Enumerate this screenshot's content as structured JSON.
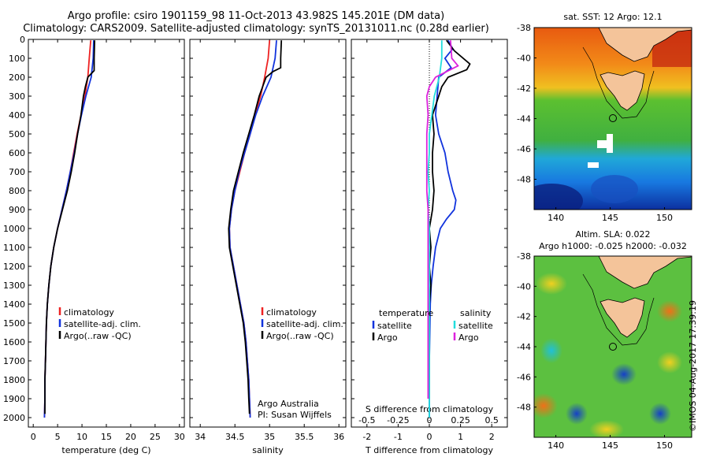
{
  "header": {
    "title_line1": "Argo profile: csiro 1901159_98 11-Oct-2013 43.982S 145.201E (DM data)",
    "title_line2": "Climatology: CARS2009. Satellite-adjusted climatology: synTS_20131011.nc (0.28d earlier)"
  },
  "credit": "©IMOS 04-Aug-2017 17:39:19",
  "colors": {
    "climatology": "#ee2222",
    "satellite": "#1133dd",
    "argo": "#000000",
    "s_satellite": "#22dddd",
    "s_argo": "#dd22dd"
  },
  "chart_data": [
    {
      "type": "line",
      "name": "temperature-profile",
      "xlabel": "temperature (deg C)",
      "ylabel": "",
      "xlim": [
        -1,
        31
      ],
      "ylim": [
        2050,
        0
      ],
      "xticks": [
        0,
        5,
        10,
        15,
        20,
        25,
        30
      ],
      "yticks": [
        0,
        100,
        200,
        300,
        400,
        500,
        600,
        700,
        800,
        900,
        1000,
        1100,
        1200,
        1300,
        1400,
        1500,
        1600,
        1700,
        1800,
        1900,
        2000
      ],
      "legend": {
        "position": "lower-right",
        "entries": [
          "climatology",
          "satellite-adj. clim.",
          "Argo(..raw -QC)"
        ]
      },
      "series": [
        {
          "name": "climatology",
          "color": "#ee2222",
          "points": [
            [
              11.8,
              5
            ],
            [
              11.5,
              100
            ],
            [
              11.2,
              200
            ],
            [
              10.6,
              300
            ],
            [
              9.8,
              400
            ],
            [
              9.0,
              500
            ],
            [
              8.3,
              600
            ],
            [
              7.6,
              700
            ],
            [
              6.8,
              800
            ],
            [
              5.9,
              900
            ],
            [
              5.0,
              1000
            ],
            [
              4.2,
              1100
            ],
            [
              3.6,
              1200
            ],
            [
              3.2,
              1300
            ],
            [
              2.9,
              1400
            ],
            [
              2.7,
              1500
            ],
            [
              2.6,
              1600
            ],
            [
              2.5,
              1700
            ],
            [
              2.4,
              1800
            ],
            [
              2.4,
              1900
            ],
            [
              2.3,
              2000
            ]
          ]
        },
        {
          "name": "satellite-adj. clim.",
          "color": "#1133dd",
          "points": [
            [
              12.4,
              5
            ],
            [
              12.3,
              100
            ],
            [
              11.9,
              200
            ],
            [
              10.8,
              300
            ],
            [
              9.9,
              400
            ],
            [
              9.1,
              500
            ],
            [
              8.4,
              600
            ],
            [
              7.6,
              700
            ],
            [
              6.8,
              800
            ],
            [
              5.9,
              900
            ],
            [
              5.0,
              1000
            ],
            [
              4.2,
              1100
            ],
            [
              3.6,
              1200
            ],
            [
              3.2,
              1300
            ],
            [
              2.9,
              1400
            ],
            [
              2.7,
              1500
            ],
            [
              2.6,
              1600
            ],
            [
              2.5,
              1700
            ],
            [
              2.4,
              1800
            ],
            [
              2.4,
              1900
            ],
            [
              2.3,
              2000
            ]
          ]
        },
        {
          "name": "Argo(..raw -QC)",
          "color": "#000000",
          "points": [
            [
              12.6,
              5
            ],
            [
              12.5,
              100
            ],
            [
              12.5,
              165
            ],
            [
              11.2,
              200
            ],
            [
              10.7,
              250
            ],
            [
              10.3,
              300
            ],
            [
              9.8,
              400
            ],
            [
              9.1,
              500
            ],
            [
              8.5,
              600
            ],
            [
              7.8,
              700
            ],
            [
              7.0,
              800
            ],
            [
              6.0,
              900
            ],
            [
              5.0,
              1000
            ],
            [
              4.2,
              1100
            ],
            [
              3.6,
              1200
            ],
            [
              3.2,
              1300
            ],
            [
              2.9,
              1400
            ],
            [
              2.7,
              1500
            ],
            [
              2.6,
              1600
            ],
            [
              2.5,
              1700
            ],
            [
              2.4,
              1800
            ],
            [
              2.4,
              1900
            ],
            [
              2.4,
              1980
            ]
          ]
        }
      ]
    },
    {
      "type": "line",
      "name": "salinity-profile",
      "xlabel": "salinity",
      "ylabel": "",
      "xlim": [
        33.85,
        36.1
      ],
      "ylim": [
        2050,
        0
      ],
      "xticks": [
        34,
        34.5,
        35,
        35.5,
        36
      ],
      "legend": {
        "position": "lower-right",
        "entries": [
          "climatology",
          "satellite-adj. clim.",
          "Argo(..raw -QC)"
        ]
      },
      "annotations": [
        "Argo Australia",
        "PI: Susan Wijffels"
      ],
      "series": [
        {
          "name": "climatology",
          "color": "#ee2222",
          "points": [
            [
              35.0,
              5
            ],
            [
              34.98,
              100
            ],
            [
              34.93,
              200
            ],
            [
              34.87,
              300
            ],
            [
              34.79,
              400
            ],
            [
              34.72,
              500
            ],
            [
              34.64,
              600
            ],
            [
              34.57,
              700
            ],
            [
              34.5,
              800
            ],
            [
              34.45,
              900
            ],
            [
              34.42,
              1000
            ],
            [
              34.43,
              1100
            ],
            [
              34.48,
              1200
            ],
            [
              34.53,
              1300
            ],
            [
              34.58,
              1400
            ],
            [
              34.63,
              1500
            ],
            [
              34.66,
              1600
            ],
            [
              34.68,
              1700
            ],
            [
              34.7,
              1800
            ],
            [
              34.71,
              1900
            ],
            [
              34.72,
              2000
            ]
          ]
        },
        {
          "name": "satellite-adj. clim.",
          "color": "#1133dd",
          "points": [
            [
              35.1,
              5
            ],
            [
              35.08,
              100
            ],
            [
              35.02,
              200
            ],
            [
              34.9,
              300
            ],
            [
              34.8,
              400
            ],
            [
              34.72,
              500
            ],
            [
              34.64,
              600
            ],
            [
              34.56,
              700
            ],
            [
              34.5,
              800
            ],
            [
              34.45,
              900
            ],
            [
              34.42,
              1000
            ],
            [
              34.43,
              1100
            ],
            [
              34.48,
              1200
            ],
            [
              34.53,
              1300
            ],
            [
              34.58,
              1400
            ],
            [
              34.63,
              1500
            ],
            [
              34.66,
              1600
            ],
            [
              34.68,
              1700
            ],
            [
              34.7,
              1800
            ],
            [
              34.71,
              1900
            ],
            [
              34.72,
              2000
            ]
          ]
        },
        {
          "name": "Argo(..raw -QC)",
          "color": "#000000",
          "points": [
            [
              35.17,
              5
            ],
            [
              35.16,
              100
            ],
            [
              35.16,
              150
            ],
            [
              35.05,
              170
            ],
            [
              34.95,
              200
            ],
            [
              34.85,
              300
            ],
            [
              34.78,
              400
            ],
            [
              34.7,
              500
            ],
            [
              34.62,
              600
            ],
            [
              34.55,
              700
            ],
            [
              34.48,
              800
            ],
            [
              34.44,
              900
            ],
            [
              34.41,
              1000
            ],
            [
              34.42,
              1100
            ],
            [
              34.47,
              1200
            ],
            [
              34.52,
              1300
            ],
            [
              34.57,
              1400
            ],
            [
              34.62,
              1500
            ],
            [
              34.65,
              1600
            ],
            [
              34.67,
              1700
            ],
            [
              34.69,
              1800
            ],
            [
              34.7,
              1900
            ],
            [
              34.71,
              1980
            ]
          ]
        }
      ]
    },
    {
      "type": "line",
      "name": "difference-profile",
      "xlabel": "T difference from climatology",
      "x2label": "S difference from climatology",
      "xlim": [
        -2.5,
        2.5
      ],
      "x2lim": [
        -0.625,
        0.625
      ],
      "ylim": [
        2050,
        0
      ],
      "xticks": [
        -2,
        -1,
        0,
        1,
        2
      ],
      "x2ticks": [
        -0.5,
        -0.25,
        0,
        0.25,
        0.5
      ],
      "x2ticklabels": [
        "-0.5",
        "-0.25",
        "0",
        "0.25",
        "0.5"
      ],
      "legend": {
        "position": "lower",
        "temperature_title": "temperature",
        "salinity_title": "salinity",
        "entries": [
          "satellite",
          "Argo",
          "satellite",
          "Argo"
        ]
      },
      "series": [
        {
          "name": "satellite",
          "group": "temperature",
          "color": "#1133dd",
          "points": [
            [
              0.6,
              5
            ],
            [
              0.75,
              50
            ],
            [
              0.5,
              100
            ],
            [
              0.7,
              150
            ],
            [
              0.3,
              200
            ],
            [
              0.25,
              300
            ],
            [
              0.2,
              400
            ],
            [
              0.3,
              500
            ],
            [
              0.5,
              600
            ],
            [
              0.6,
              700
            ],
            [
              0.75,
              800
            ],
            [
              0.85,
              850
            ],
            [
              0.8,
              900
            ],
            [
              0.55,
              950
            ],
            [
              0.35,
              1000
            ],
            [
              0.2,
              1100
            ],
            [
              0.12,
              1200
            ],
            [
              0.06,
              1300
            ],
            [
              0.03,
              1400
            ],
            [
              0.02,
              1500
            ],
            [
              0.01,
              1600
            ],
            [
              0.0,
              1700
            ],
            [
              0.0,
              1800
            ],
            [
              0.0,
              1900
            ],
            [
              0.0,
              2000
            ]
          ]
        },
        {
          "name": "Argo",
          "group": "temperature",
          "color": "#000000",
          "points": [
            [
              0.55,
              5
            ],
            [
              0.8,
              60
            ],
            [
              1.3,
              130
            ],
            [
              1.2,
              160
            ],
            [
              0.6,
              200
            ],
            [
              0.4,
              250
            ],
            [
              0.3,
              300
            ],
            [
              0.1,
              400
            ],
            [
              0.15,
              500
            ],
            [
              0.1,
              600
            ],
            [
              0.1,
              700
            ],
            [
              0.15,
              800
            ],
            [
              0.1,
              900
            ],
            [
              0.0,
              1000
            ],
            [
              0.05,
              1100
            ],
            [
              0.0,
              1200
            ],
            [
              0.05,
              1300
            ],
            [
              0.0,
              1400
            ],
            [
              0.0,
              1500
            ],
            [
              0.0,
              1600
            ],
            [
              0.0,
              1700
            ],
            [
              0.0,
              1800
            ],
            [
              0.0,
              1900
            ]
          ]
        },
        {
          "name": "satellite",
          "group": "salinity",
          "color": "#22dddd",
          "points": [
            [
              0.1,
              5
            ],
            [
              0.1,
              100
            ],
            [
              0.08,
              200
            ],
            [
              0.04,
              300
            ],
            [
              0.02,
              400
            ],
            [
              0.0,
              500
            ],
            [
              0.0,
              600
            ],
            [
              -0.01,
              700
            ],
            [
              0.0,
              800
            ],
            [
              -0.01,
              900
            ],
            [
              0.0,
              1000
            ],
            [
              0.0,
              1100
            ],
            [
              0.0,
              1200
            ],
            [
              0.0,
              1300
            ],
            [
              0.0,
              1400
            ],
            [
              0.0,
              1500
            ],
            [
              0.0,
              1600
            ],
            [
              0.0,
              1700
            ],
            [
              0.0,
              1800
            ],
            [
              0.0,
              1900
            ],
            [
              0.0,
              2000
            ]
          ]
        },
        {
          "name": "Argo",
          "group": "salinity",
          "color": "#dd22dd",
          "points": [
            [
              0.17,
              5
            ],
            [
              0.18,
              100
            ],
            [
              0.23,
              140
            ],
            [
              0.05,
              200
            ],
            [
              0.0,
              250
            ],
            [
              -0.02,
              300
            ],
            [
              -0.01,
              400
            ],
            [
              -0.02,
              500
            ],
            [
              -0.02,
              600
            ],
            [
              -0.02,
              700
            ],
            [
              -0.02,
              800
            ],
            [
              -0.01,
              900
            ],
            [
              -0.01,
              1000
            ],
            [
              -0.01,
              1100
            ],
            [
              -0.01,
              1200
            ],
            [
              -0.01,
              1300
            ],
            [
              -0.01,
              1400
            ],
            [
              -0.01,
              1500
            ],
            [
              -0.01,
              1600
            ],
            [
              -0.01,
              1700
            ],
            [
              -0.01,
              1800
            ],
            [
              -0.01,
              1900
            ]
          ]
        }
      ]
    },
    {
      "type": "heatmap",
      "name": "sst-map",
      "title": "sat. SST: 12  Argo: 12.1",
      "xlim": [
        138,
        152.5
      ],
      "ylim": [
        -50,
        -38
      ],
      "xticks": [
        140,
        145,
        150
      ],
      "yticks": [
        -38,
        -40,
        -42,
        -44,
        -46,
        -48
      ],
      "marker": {
        "lon": 145.201,
        "lat": -43.982
      }
    },
    {
      "type": "heatmap",
      "name": "sla-map",
      "title": "Altim. SLA: 0.022",
      "subtitle": "Argo h1000: -0.025 h2000: -0.032",
      "xlim": [
        138,
        152.5
      ],
      "ylim": [
        -50,
        -38
      ],
      "xticks": [
        140,
        145,
        150
      ],
      "yticks": [
        -38,
        -40,
        -42,
        -44,
        -46,
        -48
      ],
      "marker": {
        "lon": 145.201,
        "lat": -43.982
      }
    }
  ]
}
